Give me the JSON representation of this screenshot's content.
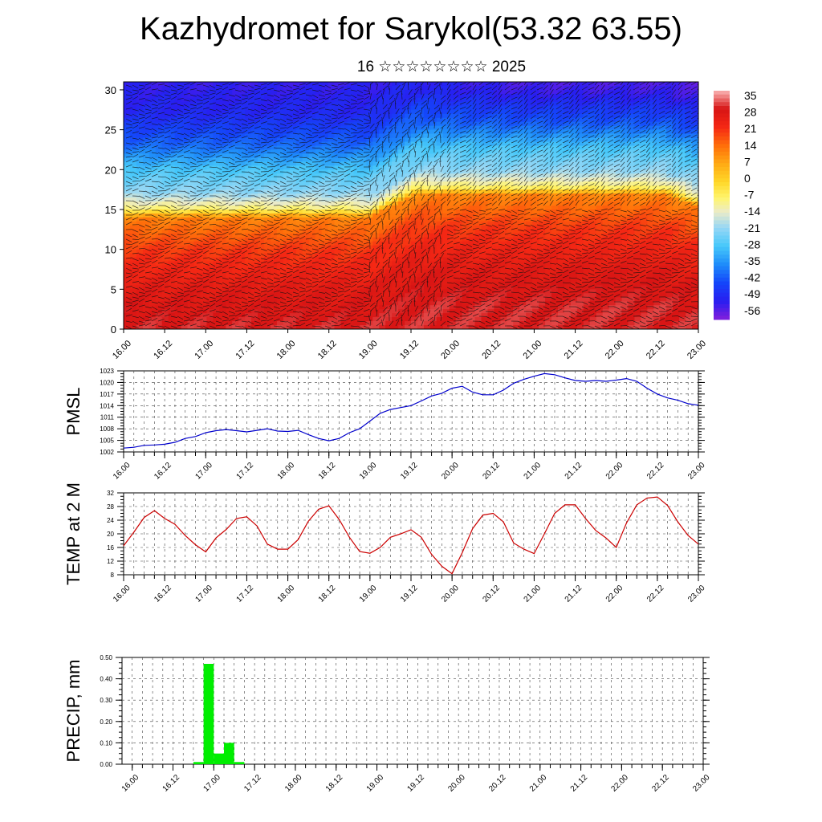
{
  "title": "Kazhydromet for Sarykol(53.32 63.55)",
  "subtitle": "16 ☆☆☆☆☆☆☆☆ 2025",
  "time_labels": [
    "16.00",
    "16.12",
    "17.00",
    "17.12",
    "18.00",
    "18.12",
    "19.00",
    "19.12",
    "20.00",
    "20.12",
    "21.00",
    "21.12",
    "22.00",
    "22.12",
    "23.00"
  ],
  "chart_data": [
    {
      "type": "heatmap",
      "name": "vertical temperature cross-section",
      "x_categories": [
        "16.00",
        "16.12",
        "17.00",
        "17.12",
        "18.00",
        "18.12",
        "19.00",
        "19.12",
        "20.00",
        "20.12",
        "21.00",
        "21.12",
        "22.00",
        "22.12",
        "23.00"
      ],
      "y_ticks": [
        0,
        5,
        10,
        15,
        20,
        25,
        30
      ],
      "ylim": [
        0,
        31
      ],
      "colorbar_labels": [
        "35",
        "28",
        "21",
        "14",
        "7",
        "0",
        "-7",
        "-14",
        "-21",
        "-28",
        "-35",
        "-42",
        "-49",
        "-56"
      ],
      "colorbar_range": [
        -60,
        40
      ],
      "temperature_profile_levels": [
        0,
        5,
        10,
        14,
        15,
        17,
        20,
        23,
        27,
        31
      ],
      "temperature_profile_values": [
        33,
        29,
        22,
        13,
        -7,
        -20,
        -28,
        -40,
        -50,
        -53
      ],
      "overlay": "wind vectors"
    },
    {
      "type": "line",
      "ylabel": "PMSL",
      "y_ticks": [
        1002,
        1005,
        1008,
        1011,
        1014,
        1017,
        1020,
        1023
      ],
      "ylim": [
        1002,
        1023
      ],
      "x_index_range": [
        0,
        56
      ],
      "color": "#0000cc",
      "values": [
        1003,
        1003.2,
        1003.7,
        1003.8,
        1004,
        1004.5,
        1005.5,
        1006,
        1007,
        1007.5,
        1007.8,
        1007.5,
        1007.2,
        1007.6,
        1008,
        1007.4,
        1007.3,
        1007.6,
        1006.5,
        1005.5,
        1004.9,
        1005.5,
        1007,
        1008,
        1010,
        1012,
        1013,
        1013.5,
        1014,
        1015.2,
        1016.5,
        1017.2,
        1018.5,
        1019,
        1017.5,
        1016.8,
        1016.8,
        1018,
        1019.8,
        1020.8,
        1021.6,
        1022.3,
        1022,
        1021.2,
        1020.5,
        1020.3,
        1020.5,
        1020.3,
        1020.6,
        1021,
        1020.3,
        1018.5,
        1017,
        1016,
        1015.4,
        1014.5,
        1014.1
      ]
    },
    {
      "type": "line",
      "ylabel": "TEMP at 2 M",
      "y_ticks": [
        8,
        12,
        16,
        20,
        24,
        28,
        32
      ],
      "ylim": [
        8,
        32
      ],
      "x_index_range": [
        0,
        56
      ],
      "color": "#cc0000",
      "values": [
        16.5,
        20.5,
        24.8,
        26.8,
        24.5,
        22.8,
        19.5,
        16.8,
        14.7,
        18.8,
        21.3,
        24.5,
        25,
        22.3,
        17,
        15.5,
        15.5,
        18.3,
        23.7,
        27.2,
        28.2,
        24.2,
        19,
        14.8,
        14.3,
        16,
        19,
        20,
        21.2,
        19,
        14,
        10.5,
        8.3,
        14.5,
        21.5,
        25.5,
        26,
        23.5,
        17.3,
        15.5,
        14.2,
        20,
        26,
        28.5,
        28.5,
        24.5,
        21,
        18.8,
        16,
        23.2,
        28.5,
        30.5,
        30.8,
        28.3,
        23.5,
        19.5,
        17
      ]
    },
    {
      "type": "bar",
      "ylabel": "PRECIP, mm",
      "y_ticks": [
        "0.00",
        "0.10",
        "0.20",
        "0.30",
        "0.40",
        "0.50"
      ],
      "ylim": [
        0,
        0.5
      ],
      "x_index_range": [
        -1,
        56
      ],
      "color": "#00ee00",
      "bars": [
        {
          "start": 6,
          "end": 7,
          "value": 0.01
        },
        {
          "start": 7,
          "end": 8,
          "value": 0.47
        },
        {
          "start": 8,
          "end": 9,
          "value": 0.05
        },
        {
          "start": 9,
          "end": 10,
          "value": 0.1
        },
        {
          "start": 10,
          "end": 11,
          "value": 0.01
        }
      ]
    }
  ]
}
